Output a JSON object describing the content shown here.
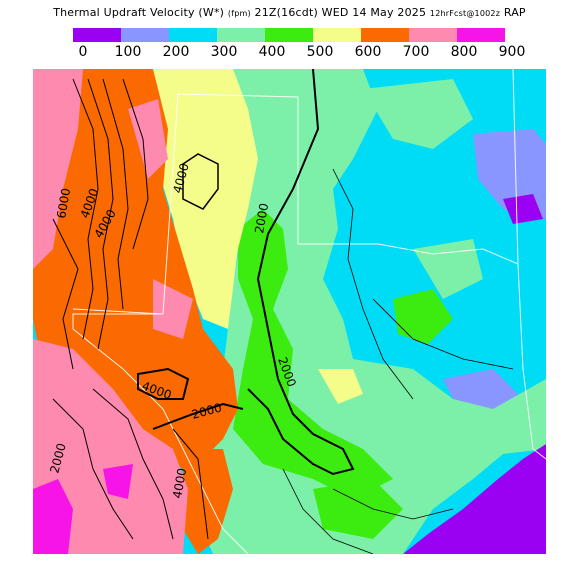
{
  "title": {
    "product": "Thermal Updraft Velocity (W*)",
    "units": "(fpm)",
    "valid": "21Z(16cdt) WED 14 May 2025",
    "forecast": "12hrFcst@1002z",
    "model": "RAP"
  },
  "colorbar": {
    "colors": [
      "#9a00f2",
      "#8a96ff",
      "#00dcf6",
      "#7cf0a8",
      "#3cec10",
      "#f4fc8a",
      "#fa6a00",
      "#fe8ab0",
      "#f614e6"
    ],
    "ticks": [
      "0",
      "100",
      "200",
      "300",
      "400",
      "500",
      "600",
      "700",
      "800",
      "900"
    ]
  },
  "contour_labels": [
    "6000",
    "4000",
    "4000",
    "2000",
    "2000",
    "4000",
    "2000",
    "4000",
    "2000",
    "4000"
  ],
  "region": "Texas and surrounding states"
}
